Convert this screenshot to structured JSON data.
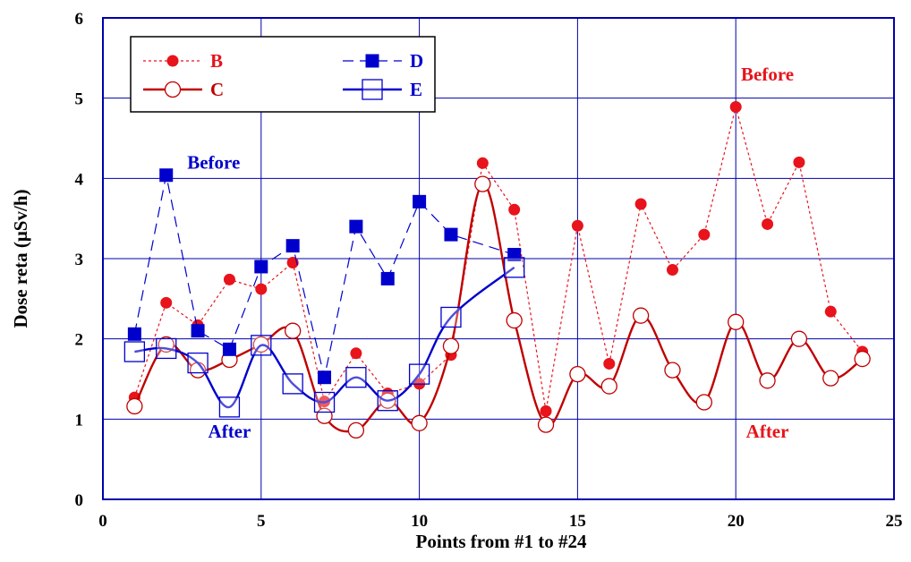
{
  "chart_data": {
    "type": "line",
    "xlabel": "Points from #1 to #24",
    "ylabel": "Dose reta (μSv/h)",
    "xlim": [
      0,
      25
    ],
    "ylim": [
      0,
      6
    ],
    "x_ticks": [
      "0",
      "5",
      "10",
      "15",
      "20",
      "25"
    ],
    "y_ticks": [
      "0",
      "1",
      "2",
      "3",
      "4",
      "5",
      "6"
    ],
    "grid": true,
    "legend_position": "top-left",
    "series": [
      {
        "name": "B",
        "color": "#e8131b",
        "line": "dotted",
        "marker": "filled-circle",
        "x": [
          1,
          2,
          3,
          4,
          5,
          6,
          7,
          8,
          9,
          10,
          11,
          12,
          13,
          14,
          15,
          16,
          17,
          18,
          19,
          20,
          21,
          22,
          23,
          24
        ],
        "values": [
          1.27,
          2.45,
          2.17,
          2.74,
          2.62,
          2.95,
          1.22,
          1.82,
          1.32,
          1.44,
          1.8,
          4.19,
          3.61,
          1.1,
          3.41,
          1.69,
          3.68,
          2.86,
          3.3,
          4.89,
          3.43,
          4.2,
          2.34,
          1.84
        ]
      },
      {
        "name": "C",
        "color": "#c00000",
        "line": "solid-smooth",
        "marker": "open-circle",
        "x": [
          1,
          2,
          3,
          4,
          5,
          6,
          7,
          8,
          9,
          10,
          11,
          12,
          13,
          14,
          15,
          16,
          17,
          18,
          19,
          20,
          21,
          22,
          23,
          24
        ],
        "values": [
          1.16,
          1.93,
          1.61,
          1.74,
          1.93,
          2.1,
          1.04,
          0.86,
          1.23,
          0.95,
          1.91,
          3.93,
          2.23,
          0.93,
          1.56,
          1.41,
          2.29,
          1.61,
          1.21,
          2.21,
          1.48,
          2.0,
          1.51,
          1.75
        ]
      },
      {
        "name": "D",
        "color": "#0000cc",
        "line": "dashed",
        "marker": "filled-square",
        "x": [
          1,
          2,
          3,
          4,
          5,
          6,
          7,
          8,
          9,
          10,
          11,
          12,
          13
        ],
        "values": [
          2.06,
          4.04,
          2.1,
          1.87,
          2.9,
          3.16,
          1.52,
          3.4,
          2.75,
          3.71,
          3.3,
          null,
          3.05
        ]
      },
      {
        "name": "E",
        "color": "#0000cc",
        "line": "solid-smooth",
        "marker": "open-square",
        "x": [
          1,
          2,
          3,
          4,
          5,
          6,
          7,
          8,
          9,
          10,
          11,
          12,
          13
        ],
        "values": [
          1.84,
          1.88,
          1.7,
          1.15,
          1.92,
          1.44,
          1.21,
          1.52,
          1.23,
          1.56,
          2.27,
          null,
          2.89
        ]
      }
    ],
    "annotations": [
      {
        "text": "Before",
        "color": "#0000cc",
        "x": 3.5,
        "y": 4.2
      },
      {
        "text": "After",
        "color": "#0000cc",
        "x": 4.0,
        "y": 0.85
      },
      {
        "text": "Before",
        "color": "#e8131b",
        "x": 21.0,
        "y": 5.3
      },
      {
        "text": "After",
        "color": "#e8131b",
        "x": 21.0,
        "y": 0.85
      }
    ]
  }
}
